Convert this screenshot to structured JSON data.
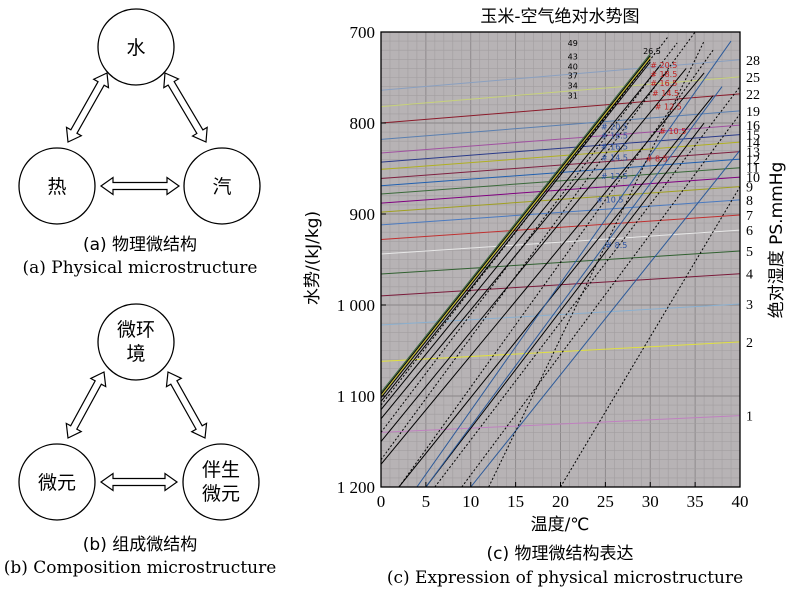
{
  "diagram_a": {
    "nodes": {
      "top": "水",
      "left": "热",
      "right": "汽"
    },
    "caption_zh": "(a) 物理微结构",
    "caption_en": "(a) Physical microstructure"
  },
  "diagram_b": {
    "nodes": {
      "top_line1": "微环",
      "top_line2": "境",
      "left": "微元",
      "right_line1": "伴生",
      "right_line2": "微元"
    },
    "caption_zh": "(b) 组成微结构",
    "caption_en": "(b) Composition microstructure"
  },
  "chart_c": {
    "caption_zh": "(c) 物理微结构表达",
    "caption_en": "(c) Expression of physical microstructure"
  },
  "chart_data": {
    "type": "line",
    "title": "玉米-空气绝对水势图",
    "xlabel": "温度/℃",
    "ylabel": "水势/(kJ/kg)",
    "y2label": "绝对湿度 PS.mmHg",
    "xlim": [
      0,
      40
    ],
    "ylim": [
      700,
      1200
    ],
    "y_inverted": true,
    "x_ticks": [
      0,
      5,
      10,
      15,
      20,
      25,
      30,
      35,
      40
    ],
    "y_ticks": [
      700,
      800,
      900,
      1000,
      1100,
      1200
    ],
    "y_tick_labels": [
      "700",
      "800",
      "900",
      "1 000",
      "1 100",
      "1 200"
    ],
    "right_ticks": [
      1,
      2,
      3,
      4,
      5,
      6,
      7,
      8,
      9,
      10,
      11,
      12,
      13,
      14,
      15,
      16,
      19,
      22,
      25,
      28
    ],
    "grid": true,
    "background": "#b7b3b5",
    "isohumidity_lines": [
      {
        "ps": 28,
        "y0": 764,
        "color": "#8aa0c0"
      },
      {
        "ps": 25,
        "y0": 782,
        "color": "#c7d27a"
      },
      {
        "ps": 22,
        "y0": 800,
        "color": "#8b1a2a"
      },
      {
        "ps": 19,
        "y0": 818,
        "color": "#5a7fb0"
      },
      {
        "ps": 16,
        "y0": 833,
        "color": "#a050a0"
      },
      {
        "ps": 15,
        "y0": 843,
        "color": "#2a3a8a"
      },
      {
        "ps": 14,
        "y0": 851,
        "color": "#b0b020"
      },
      {
        "ps": 13,
        "y0": 861,
        "color": "#7f2040"
      },
      {
        "ps": 12,
        "y0": 869,
        "color": "#2060b0"
      },
      {
        "ps": 11,
        "y0": 878,
        "color": "#3a6a3a"
      },
      {
        "ps": 10,
        "y0": 888,
        "color": "#800080"
      },
      {
        "ps": 9,
        "y0": 898,
        "color": "#a0a020"
      },
      {
        "ps": 8,
        "y0": 912,
        "color": "#4a7ac0"
      },
      {
        "ps": 7,
        "y0": 928,
        "color": "#c03030"
      },
      {
        "ps": 6,
        "y0": 944,
        "color": "#e8e8e8"
      },
      {
        "ps": 5,
        "y0": 966,
        "color": "#306030"
      },
      {
        "ps": 4,
        "y0": 990,
        "color": "#7a1a3a"
      },
      {
        "ps": 3,
        "y0": 1022,
        "color": "#8ab0d0"
      },
      {
        "ps": 2,
        "y0": 1062,
        "color": "#e0e040"
      },
      {
        "ps": 1,
        "y0": 1140,
        "color": "#c080c0"
      }
    ],
    "temperature_lines": {
      "labels_black": [
        "49",
        "43",
        "40",
        "37",
        "34",
        "31"
      ],
      "label_black_top": "26.5",
      "labels_red": [
        "20.5",
        "18.5",
        "16.5",
        "14.5",
        "12.5",
        "10.5",
        "8.5"
      ],
      "labels_blue": [
        "20.5",
        "18.5",
        "16.5",
        "14.5",
        "12.5",
        "10.5",
        "8.5"
      ]
    }
  }
}
